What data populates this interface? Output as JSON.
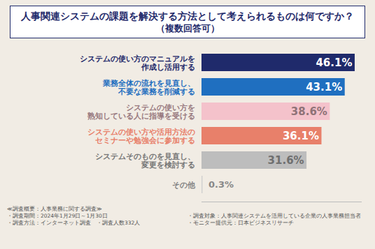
{
  "chart_data": {
    "type": "bar",
    "orientation": "horizontal",
    "title": "人事関連システムの課題を解決する方法として考えられるものは何ですか？",
    "subtitle": "（複数回答可）",
    "categories": [
      "システムの使い方のマニュアルを\n作成し活用する",
      "業務全体の流れを見直し、\n不要な業務を削減する",
      "システムの使い方を\n熟知している人に指導を受ける",
      "システムの使い方や活用方法の\nセミナーや勉強会に参加する",
      "システムそのものを見直し、\n変更を検討する",
      "その他"
    ],
    "values": [
      46.1,
      43.1,
      38.6,
      36.1,
      31.6,
      0.3
    ],
    "value_labels": [
      "46.1%",
      "43.1%",
      "38.6%",
      "36.1%",
      "31.6%",
      "0.3%"
    ],
    "colors": [
      "#1f2a6b",
      "#1f6fc0",
      "#f4c2cb",
      "#e8806a",
      "#bdbdbd",
      "#d0d0d0"
    ],
    "xlim": [
      0,
      48
    ],
    "xticks": [],
    "data_labels": true,
    "tick_labels": "y",
    "grid": false
  },
  "footer": {
    "left": [
      [
        "≪調査概要：人事業務に関する調査≫"
      ],
      [
        "・調査期間：2024年1月29日～1月30日"
      ],
      [
        "・調査方法：インターネット調査",
        "・調査人数332人"
      ]
    ],
    "right": [
      [
        ""
      ],
      [
        "・調査対象：人事関連システムを活用している企業の人事業務担当者"
      ],
      [
        "・モニター提供元：日本ビジネスリサーチ"
      ]
    ]
  }
}
